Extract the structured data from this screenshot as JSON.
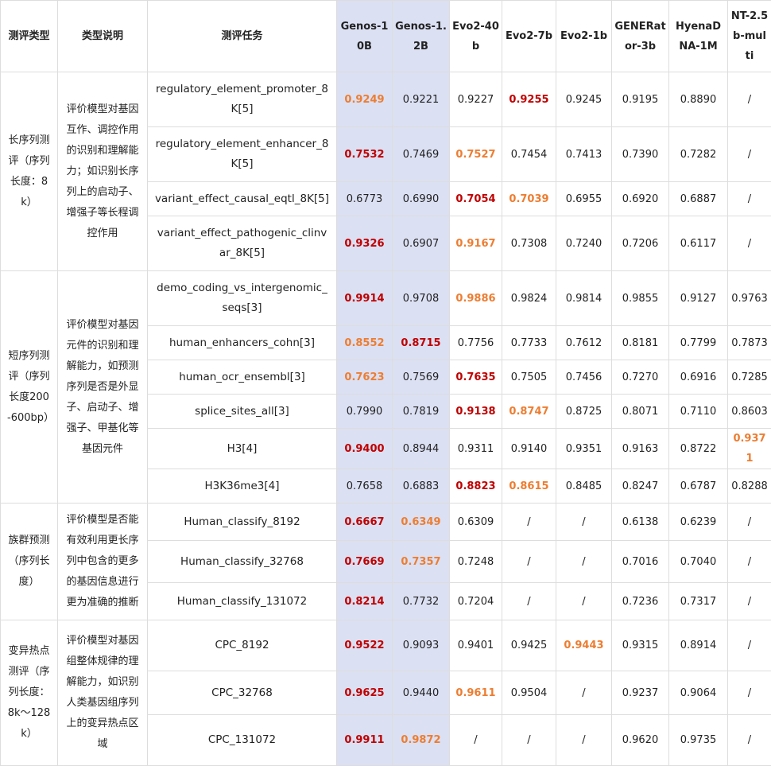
{
  "headers": [
    "测评类型",
    "类型说明",
    "测评任务",
    "Genos-10B",
    "Genos-1.2B",
    "Evo2-40b",
    "Evo2-7b",
    "Evo2-1b",
    "GENERator-3b",
    "HyenaDNA-1M",
    "NT-2.5b-multi"
  ],
  "groups": [
    {
      "type": "长序列测评（序列长度：8k）",
      "desc": "评价模型对基因互作、调控作用的识别和理解能力；如识别长序列上的启动子、增强子等长程调控作用",
      "rows": [
        {
          "task": "regulatory_element_promoter_8K[5]",
          "cells": [
            {
              "v": "0.9249",
              "s": "orange"
            },
            {
              "v": "0.9221",
              "s": "plain"
            },
            {
              "v": "0.9227",
              "s": "plain"
            },
            {
              "v": "0.9255",
              "s": "red"
            },
            {
              "v": "0.9245",
              "s": "plain"
            },
            {
              "v": "0.9195",
              "s": "plain"
            },
            {
              "v": "0.8890",
              "s": "plain"
            },
            {
              "v": "/",
              "s": "plain"
            }
          ]
        },
        {
          "task": "regulatory_element_enhancer_8K[5]",
          "cells": [
            {
              "v": "0.7532",
              "s": "red"
            },
            {
              "v": "0.7469",
              "s": "plain"
            },
            {
              "v": "0.7527",
              "s": "orange"
            },
            {
              "v": "0.7454",
              "s": "plain"
            },
            {
              "v": "0.7413",
              "s": "plain"
            },
            {
              "v": "0.7390",
              "s": "plain"
            },
            {
              "v": "0.7282",
              "s": "plain"
            },
            {
              "v": "/",
              "s": "plain"
            }
          ]
        },
        {
          "task": "variant_effect_causal_eqtl_8K[5]",
          "cells": [
            {
              "v": "0.6773",
              "s": "plain"
            },
            {
              "v": "0.6990",
              "s": "plain"
            },
            {
              "v": "0.7054",
              "s": "red"
            },
            {
              "v": "0.7039",
              "s": "orange"
            },
            {
              "v": "0.6955",
              "s": "plain"
            },
            {
              "v": "0.6920",
              "s": "plain"
            },
            {
              "v": "0.6887",
              "s": "plain"
            },
            {
              "v": "/",
              "s": "plain"
            }
          ]
        },
        {
          "task": "variant_effect_pathogenic_clinvar_8K[5]",
          "cells": [
            {
              "v": "0.9326",
              "s": "red"
            },
            {
              "v": "0.6907",
              "s": "plain"
            },
            {
              "v": "0.9167",
              "s": "orange"
            },
            {
              "v": "0.7308",
              "s": "plain"
            },
            {
              "v": "0.7240",
              "s": "plain"
            },
            {
              "v": "0.7206",
              "s": "plain"
            },
            {
              "v": "0.6117",
              "s": "plain"
            },
            {
              "v": "/",
              "s": "plain"
            }
          ]
        }
      ]
    },
    {
      "type": "短序列测评（序列长度200-600bp）",
      "desc": "评价模型对基因元件的识别和理解能力，如预测序列是否是外显子、启动子、增强子、甲基化等基因元件",
      "rows": [
        {
          "task": "demo_coding_vs_intergenomic_seqs[3]",
          "cells": [
            {
              "v": "0.9914",
              "s": "red"
            },
            {
              "v": "0.9708",
              "s": "plain"
            },
            {
              "v": "0.9886",
              "s": "orange"
            },
            {
              "v": "0.9824",
              "s": "plain"
            },
            {
              "v": "0.9814",
              "s": "plain"
            },
            {
              "v": "0.9855",
              "s": "plain"
            },
            {
              "v": "0.9127",
              "s": "plain"
            },
            {
              "v": "0.9763",
              "s": "plain"
            }
          ]
        },
        {
          "task": "human_enhancers_cohn[3]",
          "cells": [
            {
              "v": "0.8552",
              "s": "orange"
            },
            {
              "v": "0.8715",
              "s": "red"
            },
            {
              "v": "0.7756",
              "s": "plain"
            },
            {
              "v": "0.7733",
              "s": "plain"
            },
            {
              "v": "0.7612",
              "s": "plain"
            },
            {
              "v": "0.8181",
              "s": "plain"
            },
            {
              "v": "0.7799",
              "s": "plain"
            },
            {
              "v": "0.7873",
              "s": "plain"
            }
          ]
        },
        {
          "task": "human_ocr_ensembl[3]",
          "cells": [
            {
              "v": "0.7623",
              "s": "orange"
            },
            {
              "v": "0.7569",
              "s": "plain"
            },
            {
              "v": "0.7635",
              "s": "red"
            },
            {
              "v": "0.7505",
              "s": "plain"
            },
            {
              "v": "0.7456",
              "s": "plain"
            },
            {
              "v": "0.7270",
              "s": "plain"
            },
            {
              "v": "0.6916",
              "s": "plain"
            },
            {
              "v": "0.7285",
              "s": "plain"
            }
          ]
        },
        {
          "task": "splice_sites_all[3]",
          "cells": [
            {
              "v": "0.7990",
              "s": "plain"
            },
            {
              "v": "0.7819",
              "s": "plain"
            },
            {
              "v": "0.9138",
              "s": "red"
            },
            {
              "v": "0.8747",
              "s": "orange"
            },
            {
              "v": "0.8725",
              "s": "plain"
            },
            {
              "v": "0.8071",
              "s": "plain"
            },
            {
              "v": "0.7110",
              "s": "plain"
            },
            {
              "v": "0.8603",
              "s": "plain"
            }
          ]
        },
        {
          "task": "H3[4]",
          "cells": [
            {
              "v": "0.9400",
              "s": "red"
            },
            {
              "v": "0.8944",
              "s": "plain"
            },
            {
              "v": "0.9311",
              "s": "plain"
            },
            {
              "v": "0.9140",
              "s": "plain"
            },
            {
              "v": "0.9351",
              "s": "plain"
            },
            {
              "v": "0.9163",
              "s": "plain"
            },
            {
              "v": "0.8722",
              "s": "plain"
            },
            {
              "v": "0.9371",
              "s": "orange"
            }
          ]
        },
        {
          "task": "H3K36me3[4]",
          "cells": [
            {
              "v": "0.7658",
              "s": "plain"
            },
            {
              "v": "0.6883",
              "s": "plain"
            },
            {
              "v": "0.8823",
              "s": "red"
            },
            {
              "v": "0.8615",
              "s": "orange"
            },
            {
              "v": "0.8485",
              "s": "plain"
            },
            {
              "v": "0.8247",
              "s": "plain"
            },
            {
              "v": "0.6787",
              "s": "plain"
            },
            {
              "v": "0.8288",
              "s": "plain"
            }
          ]
        }
      ]
    },
    {
      "type": "族群预测（序列长度）",
      "desc": "评价模型是否能有效利用更长序列中包含的更多的基因信息进行更为准确的推断",
      "rows": [
        {
          "task": "Human_classify_8192",
          "cells": [
            {
              "v": "0.6667",
              "s": "red"
            },
            {
              "v": "0.6349",
              "s": "orange"
            },
            {
              "v": "0.6309",
              "s": "plain"
            },
            {
              "v": "/",
              "s": "plain"
            },
            {
              "v": "/",
              "s": "plain"
            },
            {
              "v": "0.6138",
              "s": "plain"
            },
            {
              "v": "0.6239",
              "s": "plain"
            },
            {
              "v": "/",
              "s": "plain"
            }
          ]
        },
        {
          "task": "Human_classify_32768",
          "cells": [
            {
              "v": "0.7669",
              "s": "red"
            },
            {
              "v": "0.7357",
              "s": "orange"
            },
            {
              "v": "0.7248",
              "s": "plain"
            },
            {
              "v": "/",
              "s": "plain"
            },
            {
              "v": "/",
              "s": "plain"
            },
            {
              "v": "0.7016",
              "s": "plain"
            },
            {
              "v": "0.7040",
              "s": "plain"
            },
            {
              "v": "/",
              "s": "plain"
            }
          ]
        },
        {
          "task": "Human_classify_131072",
          "cells": [
            {
              "v": "0.8214",
              "s": "red"
            },
            {
              "v": "0.7732",
              "s": "plain"
            },
            {
              "v": "0.7204",
              "s": "plain"
            },
            {
              "v": "/",
              "s": "plain"
            },
            {
              "v": "/",
              "s": "plain"
            },
            {
              "v": "0.7236",
              "s": "plain"
            },
            {
              "v": "0.7317",
              "s": "plain"
            },
            {
              "v": "/",
              "s": "plain"
            }
          ]
        }
      ]
    },
    {
      "type": "变异热点测评（序列长度：8k～128k）",
      "desc": "评价模型对基因组整体规律的理解能力，如识别人类基因组序列上的变异热点区域",
      "rows": [
        {
          "task": "CPC_8192",
          "cells": [
            {
              "v": "0.9522",
              "s": "red"
            },
            {
              "v": "0.9093",
              "s": "plain"
            },
            {
              "v": "0.9401",
              "s": "plain"
            },
            {
              "v": "0.9425",
              "s": "plain"
            },
            {
              "v": "0.9443",
              "s": "orange"
            },
            {
              "v": "0.9315",
              "s": "plain"
            },
            {
              "v": "0.8914",
              "s": "plain"
            },
            {
              "v": "/",
              "s": "plain"
            }
          ]
        },
        {
          "task": "CPC_32768",
          "cells": [
            {
              "v": "0.9625",
              "s": "red"
            },
            {
              "v": "0.9440",
              "s": "plain"
            },
            {
              "v": "0.9611",
              "s": "orange"
            },
            {
              "v": "0.9504",
              "s": "plain"
            },
            {
              "v": "/",
              "s": "plain"
            },
            {
              "v": "0.9237",
              "s": "plain"
            },
            {
              "v": "0.9064",
              "s": "plain"
            },
            {
              "v": "/",
              "s": "plain"
            }
          ]
        },
        {
          "task": "CPC_131072",
          "cells": [
            {
              "v": "0.9911",
              "s": "red"
            },
            {
              "v": "0.9872",
              "s": "orange"
            },
            {
              "v": "/",
              "s": "plain"
            },
            {
              "v": "/",
              "s": "plain"
            },
            {
              "v": "/",
              "s": "plain"
            },
            {
              "v": "0.9620",
              "s": "plain"
            },
            {
              "v": "0.9735",
              "s": "plain"
            },
            {
              "v": "/",
              "s": "plain"
            }
          ]
        }
      ]
    }
  ]
}
